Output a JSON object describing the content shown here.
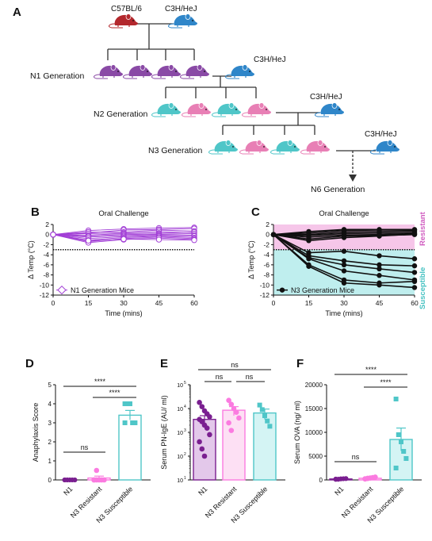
{
  "colors": {
    "black": "#111111",
    "parent_b6": "#b3282d",
    "c3h": "#2f86c9",
    "n1": "#8a4aa6",
    "n1_line": "#a23fd6",
    "n3_teal": "#4fc6c8",
    "n3_pink": "#e87fb5",
    "resistant_bg": "#f6c6e9",
    "susceptible_bg": "#bfeeee",
    "resistant_text": "#d05cc0",
    "susceptible_text": "#47c2c2",
    "pink_fill": "#fb7be0",
    "purple_fill": "#7a1f90"
  },
  "panelA": {
    "label": "A",
    "b6_label": "C57BL/6",
    "c3h_label": "C3H/HeJ",
    "n1_label": "N1 Generation",
    "n2_label": "N2 Generation",
    "n3_label": "N3 Generation",
    "n6_label": "N6 Generation",
    "icon": "mouse-icon"
  },
  "chart_data": [
    {
      "panel": "B",
      "type": "line",
      "title": "Oral Challenge",
      "xlabel": "Time (mins)",
      "ylabel": "Δ Temp (°C)",
      "x": [
        0,
        15,
        30,
        45,
        60
      ],
      "xticks": [
        "0",
        "15",
        "30",
        "45",
        "60"
      ],
      "yticks": [
        "2",
        "0",
        "-2",
        "-4",
        "-6",
        "-8",
        "-10",
        "-12"
      ],
      "ylim": [
        -12,
        2
      ],
      "threshold": -3,
      "legend": "N1 Generation Mice",
      "series": [
        {
          "values": [
            0,
            0.8,
            1.1,
            1.3,
            1.4
          ]
        },
        {
          "values": [
            0,
            0.3,
            0.9,
            1.0,
            1.2
          ]
        },
        {
          "values": [
            0,
            0.5,
            0.5,
            0.9,
            0.7
          ]
        },
        {
          "values": [
            0,
            0.2,
            0.3,
            0.6,
            0.4
          ]
        },
        {
          "values": [
            0,
            -0.1,
            0.2,
            0.3,
            0.5
          ]
        },
        {
          "values": [
            0,
            -0.3,
            0.0,
            0.1,
            0.2
          ]
        },
        {
          "values": [
            0,
            -0.5,
            -0.2,
            0.0,
            -0.1
          ]
        },
        {
          "values": [
            0,
            -0.8,
            -0.4,
            -0.2,
            -0.3
          ]
        },
        {
          "values": [
            0,
            -1.1,
            -0.6,
            -0.3,
            -0.6
          ]
        },
        {
          "values": [
            0,
            -1.4,
            -0.8,
            -0.5,
            -0.8
          ]
        },
        {
          "values": [
            0,
            -1.6,
            -1.0,
            -0.7,
            -1.0
          ]
        },
        {
          "values": [
            0,
            -1.2,
            -0.9,
            -1.0,
            -1.1
          ]
        }
      ]
    },
    {
      "panel": "C",
      "type": "line",
      "title": "Oral Challenge",
      "xlabel": "Time (mins)",
      "ylabel": "Δ Temp (°C)",
      "x": [
        0,
        15,
        30,
        45,
        60
      ],
      "xticks": [
        "0",
        "15",
        "30",
        "45",
        "60"
      ],
      "yticks": [
        "2",
        "0",
        "-2",
        "-4",
        "-6",
        "-8",
        "-10",
        "-12"
      ],
      "ylim": [
        -12,
        2
      ],
      "threshold": -3,
      "legend": "N3 Generation Mice",
      "region_labels": [
        "Resistant",
        "Susceptible"
      ],
      "series": [
        {
          "values": [
            0,
            0.6,
            1.0,
            1.0,
            1.0
          ]
        },
        {
          "values": [
            0,
            0.3,
            0.8,
            0.9,
            0.9
          ]
        },
        {
          "values": [
            0,
            0.0,
            0.5,
            0.6,
            0.7
          ]
        },
        {
          "values": [
            0,
            -0.2,
            0.2,
            0.3,
            0.4
          ]
        },
        {
          "values": [
            0,
            -0.5,
            -0.1,
            0.0,
            0.2
          ]
        },
        {
          "values": [
            0,
            -0.9,
            -0.3,
            -0.2,
            0.0
          ]
        },
        {
          "values": [
            0,
            -1.2,
            -0.6,
            -0.3,
            0.1
          ]
        },
        {
          "values": [
            0,
            -3.6,
            -3.3,
            -4.2,
            -4.8
          ]
        },
        {
          "values": [
            0,
            -4.2,
            -5.2,
            -6.0,
            -6.2
          ]
        },
        {
          "values": [
            0,
            -4.6,
            -6.0,
            -6.8,
            -7.5
          ]
        },
        {
          "values": [
            0,
            -4.8,
            -7.2,
            -8.1,
            -9.0
          ]
        },
        {
          "values": [
            0,
            -6.0,
            -9.0,
            -9.6,
            -9.3
          ]
        },
        {
          "values": [
            0,
            -6.3,
            -9.6,
            -10.0,
            -10.5
          ]
        }
      ]
    },
    {
      "panel": "D",
      "type": "bar",
      "ylabel": "Anaphylaxis  Score",
      "categories": [
        "N1",
        "N3 Resistant",
        "N3 Susceptible"
      ],
      "values": [
        0,
        0.1,
        3.4
      ],
      "errors": [
        0,
        0.1,
        0.25
      ],
      "yticks": [
        "0",
        "1",
        "2",
        "3",
        "4",
        "5"
      ],
      "ylim": [
        0,
        5
      ],
      "points": [
        [
          0,
          0,
          0,
          0,
          0,
          0,
          0,
          0,
          0,
          0,
          0,
          0
        ],
        [
          0,
          0,
          0,
          0,
          0,
          0,
          0.5
        ],
        [
          4,
          4,
          4,
          3,
          3,
          3
        ]
      ],
      "comparisons": [
        {
          "pair": [
            0,
            2
          ],
          "label": "****"
        },
        {
          "pair": [
            1,
            2
          ],
          "label": "****"
        },
        {
          "pair": [
            0,
            1
          ],
          "label": "ns"
        }
      ]
    },
    {
      "panel": "E",
      "type": "bar",
      "ylabel": "Serum PN-IgE  (AU/ ml)",
      "categories": [
        "N1",
        "N3 Resistant",
        "N3 Susceptible"
      ],
      "values": [
        3500,
        8500,
        6500
      ],
      "errors": [
        1500,
        3500,
        3000
      ],
      "scale": "log",
      "ylim": [
        10,
        100000
      ],
      "points": [
        [
          18000,
          12000,
          8000,
          6000,
          4500,
          3500,
          2800,
          2000,
          1500,
          800,
          400,
          200,
          100
        ],
        [
          22000,
          15000,
          10000,
          7000,
          4000,
          2500,
          1200
        ],
        [
          14000,
          9000,
          5000,
          3000,
          1800
        ]
      ],
      "comparisons": [
        {
          "pair": [
            0,
            2
          ],
          "label": "ns"
        },
        {
          "pair": [
            0,
            1
          ],
          "label": "ns"
        },
        {
          "pair": [
            1,
            2
          ],
          "label": "ns"
        }
      ]
    },
    {
      "panel": "F",
      "type": "bar",
      "ylabel": "Serum OVA  (ng/ ml)",
      "categories": [
        "N1",
        "N3 Resistant",
        "N3 Susceptible"
      ],
      "values": [
        200,
        350,
        8500
      ],
      "errors": [
        80,
        150,
        2400
      ],
      "yticks": [
        "0",
        "5000",
        "10000",
        "15000",
        "20000"
      ],
      "ylim": [
        0,
        20000
      ],
      "points": [
        [
          100,
          150,
          200,
          250,
          300,
          180,
          120,
          220,
          260,
          280,
          160,
          140
        ],
        [
          200,
          300,
          400,
          500,
          600,
          250,
          350
        ],
        [
          17000,
          9500,
          8000,
          6000,
          4500,
          2500
        ]
      ],
      "comparisons": [
        {
          "pair": [
            0,
            2
          ],
          "label": "****"
        },
        {
          "pair": [
            1,
            2
          ],
          "label": "****"
        },
        {
          "pair": [
            0,
            1
          ],
          "label": "ns"
        }
      ]
    }
  ],
  "panel_labels": {
    "B": "B",
    "C": "C",
    "D": "D",
    "E": "E",
    "F": "F"
  },
  "log_tick_labels": [
    "10",
    "10",
    "10",
    "10",
    "10"
  ],
  "log_tick_exps": [
    "1",
    "2",
    "3",
    "4",
    "5"
  ]
}
